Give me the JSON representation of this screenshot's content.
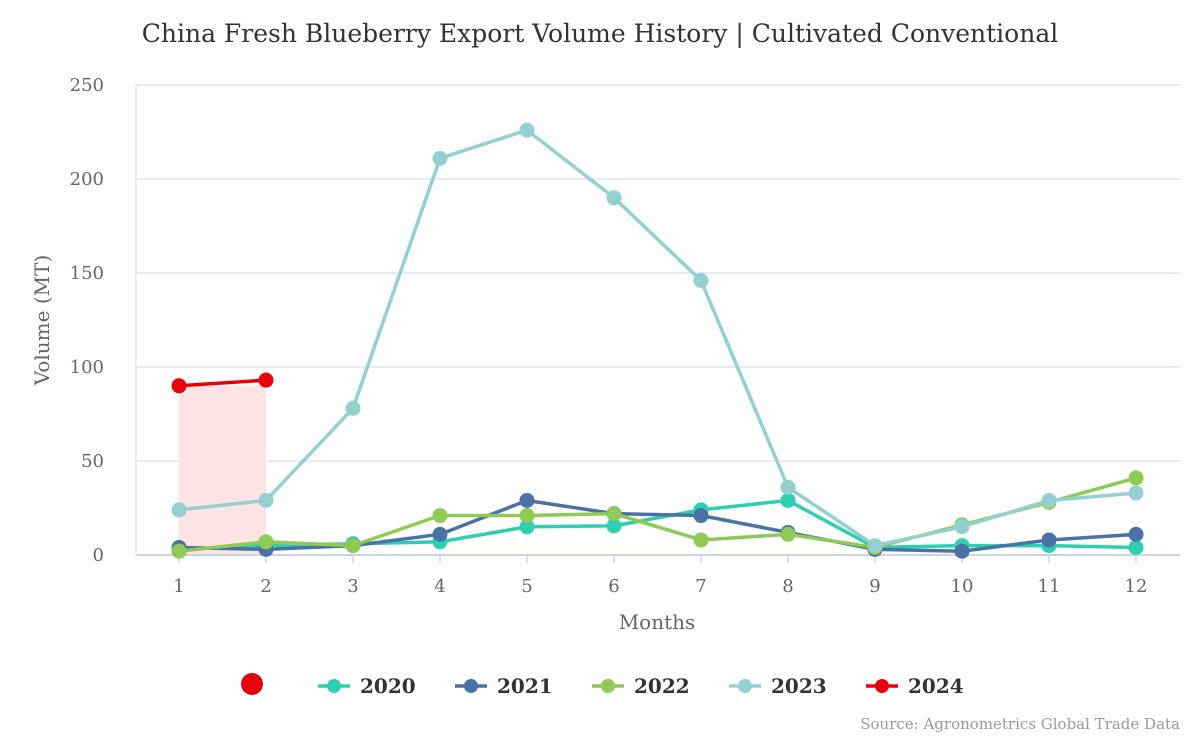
{
  "chart_data": {
    "type": "line",
    "title": "China Fresh Blueberry Export Volume History | Cultivated Conventional",
    "xlabel": "Months",
    "ylabel": "Volume (MT)",
    "categories": [
      "1",
      "2",
      "3",
      "4",
      "5",
      "6",
      "7",
      "8",
      "9",
      "10",
      "11",
      "12"
    ],
    "ylim": [
      0,
      250
    ],
    "yticks": [
      0,
      50,
      100,
      150,
      200,
      250
    ],
    "grid": true,
    "legend_position": "bottom",
    "highlight_range": {
      "from": "1",
      "to": "2",
      "color": "#fce4e4"
    },
    "series": [
      {
        "name": "2020",
        "color": "#2ecfb0",
        "values": [
          3,
          5,
          6,
          7,
          15,
          15.5,
          24,
          29,
          4,
          5,
          5,
          4
        ]
      },
      {
        "name": "2021",
        "color": "#4a72a6",
        "values": [
          4,
          3,
          5,
          11,
          29,
          22,
          21,
          12,
          3,
          2,
          8,
          11
        ]
      },
      {
        "name": "2022",
        "color": "#8fca55",
        "values": [
          2,
          7,
          5,
          21,
          21,
          22,
          8,
          11,
          4,
          16,
          28,
          41
        ]
      },
      {
        "name": "2023",
        "color": "#94d0d0",
        "values": [
          24,
          29,
          78,
          211,
          226,
          190,
          146,
          36,
          5,
          15,
          29,
          33
        ]
      },
      {
        "name": "2024",
        "color": "#e8000b",
        "values": [
          90,
          93,
          null,
          null,
          null,
          null,
          null,
          null,
          null,
          null,
          null,
          null
        ]
      }
    ],
    "extra_legend_marker_color": "#e8000b",
    "source": "Source: Agronometrics Global Trade Data"
  }
}
